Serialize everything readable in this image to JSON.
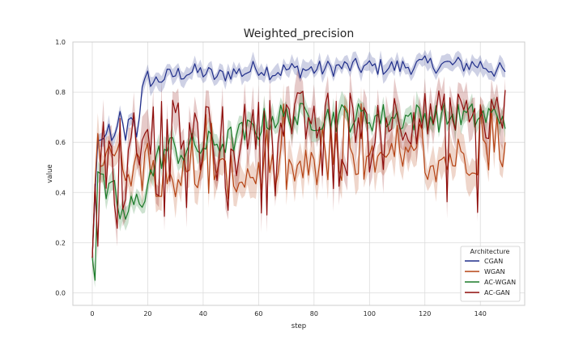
{
  "chart_data": {
    "type": "line",
    "title": "Weighted_precision",
    "xlabel": "step",
    "ylabel": "value",
    "xlim": [
      -7,
      156
    ],
    "ylim": [
      -0.05,
      1.0
    ],
    "xticks": [
      "0",
      "20",
      "40",
      "60",
      "80",
      "100",
      "120",
      "140"
    ],
    "yticks": [
      "0.0",
      "0.2",
      "0.4",
      "0.6",
      "0.8",
      "1.0"
    ],
    "grid": true,
    "legend": {
      "title": "Architecture",
      "placement": "bottom-right"
    },
    "series": [
      {
        "name": "CGAN",
        "color": "#1f2d8a",
        "keypoints": [
          [
            0,
            0.14
          ],
          [
            2,
            0.62
          ],
          [
            4,
            0.58
          ],
          [
            6,
            0.66
          ],
          [
            8,
            0.6
          ],
          [
            10,
            0.7
          ],
          [
            12,
            0.62
          ],
          [
            14,
            0.72
          ],
          [
            16,
            0.64
          ],
          [
            18,
            0.8
          ],
          [
            20,
            0.86
          ],
          [
            22,
            0.84
          ],
          [
            26,
            0.86
          ],
          [
            30,
            0.87
          ],
          [
            34,
            0.88
          ],
          [
            40,
            0.88
          ],
          [
            45,
            0.86
          ],
          [
            50,
            0.88
          ],
          [
            55,
            0.88
          ],
          [
            60,
            0.9
          ],
          [
            65,
            0.88
          ],
          [
            70,
            0.89
          ],
          [
            80,
            0.89
          ],
          [
            90,
            0.9
          ],
          [
            100,
            0.9
          ],
          [
            110,
            0.9
          ],
          [
            120,
            0.91
          ],
          [
            130,
            0.91
          ],
          [
            140,
            0.91
          ],
          [
            145,
            0.89
          ],
          [
            149,
            0.88
          ]
        ],
        "band": 0.025
      },
      {
        "name": "WGAN",
        "color": "#b54314",
        "keypoints": [
          [
            0,
            0.14
          ],
          [
            2,
            0.52
          ],
          [
            4,
            0.56
          ],
          [
            6,
            0.6
          ],
          [
            8,
            0.55
          ],
          [
            10,
            0.53
          ],
          [
            12,
            0.52
          ],
          [
            16,
            0.5
          ],
          [
            20,
            0.48
          ],
          [
            30,
            0.46
          ],
          [
            40,
            0.47
          ],
          [
            50,
            0.46
          ],
          [
            60,
            0.48
          ],
          [
            70,
            0.48
          ],
          [
            80,
            0.49
          ],
          [
            90,
            0.5
          ],
          [
            100,
            0.5
          ],
          [
            110,
            0.52
          ],
          [
            120,
            0.52
          ],
          [
            130,
            0.54
          ],
          [
            140,
            0.56
          ],
          [
            149,
            0.56
          ]
        ],
        "band": 0.055
      },
      {
        "name": "AC-WGAN",
        "color": "#1a7a28",
        "keypoints": [
          [
            0,
            0.14
          ],
          [
            1,
            0.08
          ],
          [
            2,
            0.5
          ],
          [
            4,
            0.42
          ],
          [
            6,
            0.38
          ],
          [
            8,
            0.4
          ],
          [
            10,
            0.32
          ],
          [
            12,
            0.3
          ],
          [
            14,
            0.34
          ],
          [
            16,
            0.36
          ],
          [
            18,
            0.38
          ],
          [
            20,
            0.44
          ],
          [
            24,
            0.54
          ],
          [
            28,
            0.58
          ],
          [
            32,
            0.56
          ],
          [
            36,
            0.58
          ],
          [
            40,
            0.58
          ],
          [
            44,
            0.6
          ],
          [
            48,
            0.6
          ],
          [
            52,
            0.62
          ],
          [
            56,
            0.64
          ],
          [
            60,
            0.66
          ],
          [
            64,
            0.7
          ],
          [
            70,
            0.7
          ],
          [
            80,
            0.7
          ],
          [
            90,
            0.7
          ],
          [
            100,
            0.7
          ],
          [
            110,
            0.7
          ],
          [
            120,
            0.7
          ],
          [
            130,
            0.7
          ],
          [
            140,
            0.7
          ],
          [
            149,
            0.71
          ]
        ],
        "band": 0.035
      },
      {
        "name": "AC-GAN",
        "color": "#8e0c0a",
        "keypoints": [
          [
            0,
            0.14
          ],
          [
            2,
            0.56
          ],
          [
            4,
            0.6
          ],
          [
            6,
            0.62
          ],
          [
            8,
            0.62
          ],
          [
            10,
            0.64
          ],
          [
            14,
            0.66
          ],
          [
            18,
            0.66
          ],
          [
            20,
            0.66
          ],
          [
            30,
            0.66
          ],
          [
            40,
            0.64
          ],
          [
            50,
            0.64
          ],
          [
            60,
            0.66
          ],
          [
            65,
            0.7
          ],
          [
            70,
            0.7
          ],
          [
            80,
            0.7
          ],
          [
            90,
            0.7
          ],
          [
            100,
            0.7
          ],
          [
            110,
            0.7
          ],
          [
            120,
            0.7
          ],
          [
            130,
            0.7
          ],
          [
            140,
            0.68
          ],
          [
            149,
            0.72
          ]
        ],
        "band": 0.06
      }
    ]
  }
}
